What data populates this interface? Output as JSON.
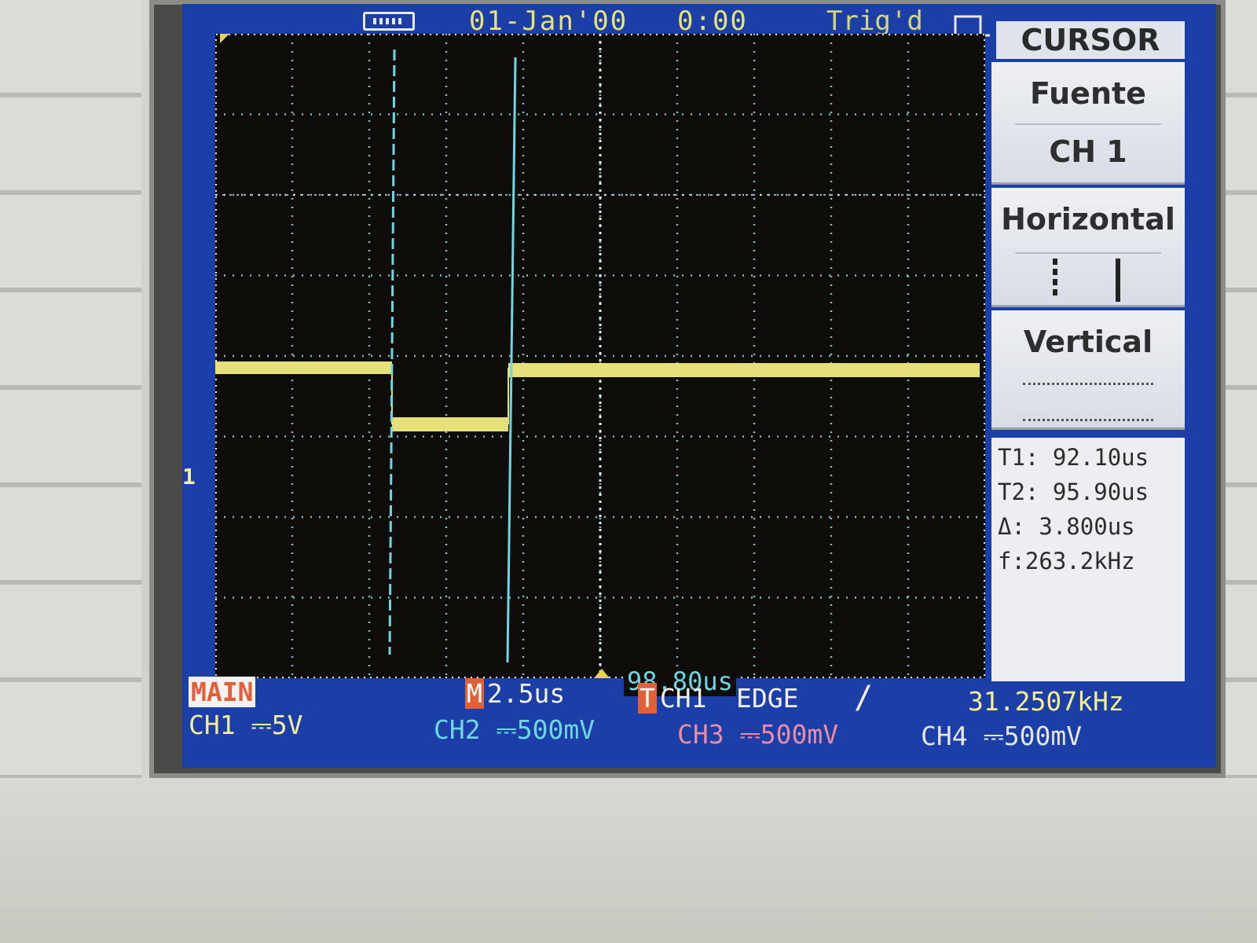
{
  "top_bar": {
    "usb_icon": "usb-connection-icon",
    "date": "01-Jan'00",
    "time": "0:00",
    "trigger_status": "Trig'd",
    "trigger_icon": "rising-pulse-icon"
  },
  "waveform": {
    "ch1_marker": "1",
    "time_readout": "98.80us"
  },
  "menu": {
    "title": "CURSOR",
    "source_label": "Fuente",
    "source_value": "CH 1",
    "horizontal_label": "Horizontal",
    "horizontal_icon": "horizontal-cursors-icon",
    "vertical_label": "Vertical"
  },
  "readouts": {
    "t1_label": "T1:",
    "t1_value": "92.10us",
    "t2_label": "T2:",
    "t2_value": "95.90us",
    "delta_label": "Δ:",
    "delta_value": "3.800us",
    "freq_label": "f:",
    "freq_value": "263.2kHz"
  },
  "status_bar": {
    "mode": "MAIN",
    "timebase_tag": "M",
    "timebase": "2.5us",
    "trigger_tag": "T",
    "trigger_source": "CH1",
    "trigger_type": "EDGE",
    "trigger_slope": "/",
    "trigger_frequency": "31.2507kHz",
    "ch1_scale": "CH1 ⎓5V",
    "ch2_scale": "CH2 ⎓500mV",
    "ch3_scale": "CH3 ⎓500mV",
    "ch4_scale": "CH4 ⎓500mV"
  },
  "colors": {
    "screen_background": "#1b3fa6",
    "ch1_trace": "#e6e07a",
    "cursor": "#6fd6e4",
    "grid_dots": "#9fd8f0"
  }
}
